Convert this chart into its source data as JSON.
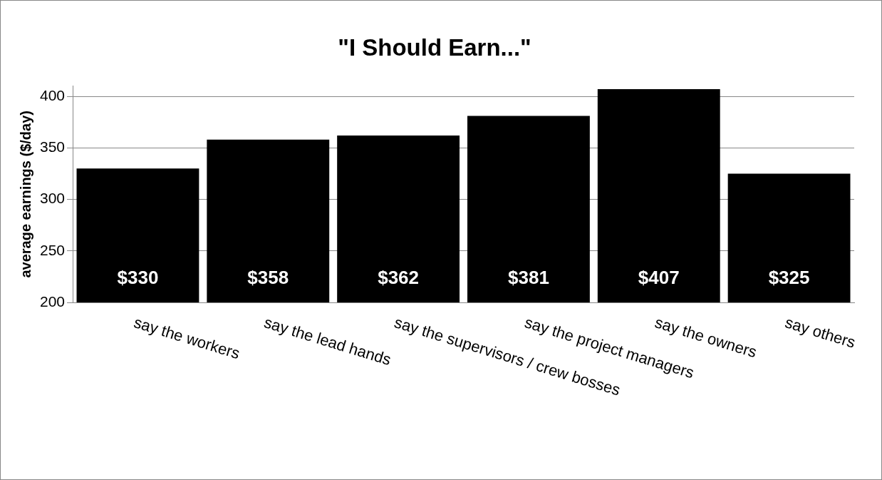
{
  "chart_data": {
    "type": "bar",
    "title": "\"I Should Earn...\"",
    "ylabel": "average earnings ($/day)",
    "categories": [
      "say the workers",
      "say the lead hands",
      "say the supervisors / crew bosses",
      "say the project managers",
      "say the owners",
      "say others"
    ],
    "values": [
      330,
      358,
      362,
      381,
      407,
      325
    ],
    "color": "#000000",
    "value_labels": [
      "$330",
      "$358",
      "$362",
      "$381",
      "$407",
      "$325"
    ],
    "ylim": [
      200,
      410
    ],
    "yticks": [
      200,
      250,
      300,
      350,
      400
    ],
    "grid": "y",
    "legend": false
  }
}
